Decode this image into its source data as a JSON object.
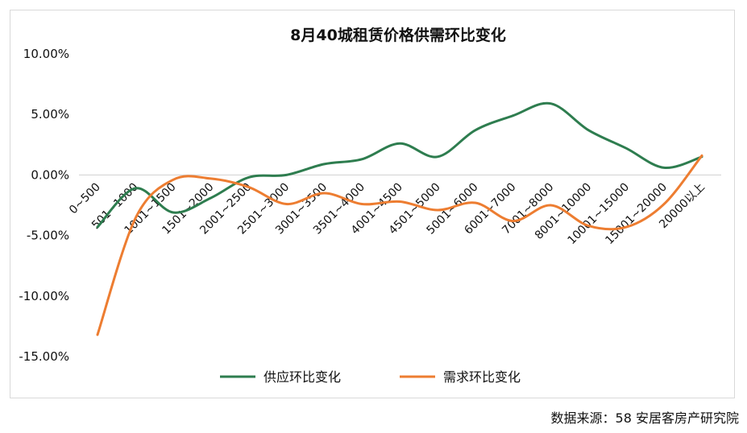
{
  "chart_data": {
    "type": "line",
    "title": "8月40城租赁价格供需环比变化",
    "categories": [
      "0~500",
      "501~1000",
      "1001~1500",
      "1501~2000",
      "2001~2500",
      "2501~3000",
      "3001~3500",
      "3501~4000",
      "4001~4500",
      "4501~5000",
      "5001~6000",
      "6001~7000",
      "7001~8000",
      "8001~10000",
      "10001~15000",
      "15001~20000",
      "20000以上"
    ],
    "series": [
      {
        "name": "供应环比变化",
        "color": "#2e7d4f",
        "values": [
          -4.3,
          -1.1,
          -3.1,
          -1.9,
          -0.2,
          0.0,
          0.9,
          1.3,
          2.6,
          1.5,
          3.7,
          4.9,
          5.9,
          3.7,
          2.2,
          0.6,
          1.5
        ]
      },
      {
        "name": "需求环比变化",
        "color": "#ed7d31",
        "values": [
          -13.2,
          -3.6,
          -0.4,
          -0.3,
          -1.0,
          -2.4,
          -1.5,
          -2.4,
          -2.2,
          -2.9,
          -2.3,
          -3.8,
          -2.5,
          -4.2,
          -4.3,
          -2.4,
          1.6
        ]
      }
    ],
    "yticks": [
      "10.00%",
      "5.00%",
      "0.00%",
      "-5.00%",
      "-10.00%",
      "-15.00%"
    ],
    "ylim": [
      -15,
      10
    ],
    "grid": false,
    "legend_position": "bottom"
  },
  "source_text": "数据来源：58 安居客房产研究院"
}
